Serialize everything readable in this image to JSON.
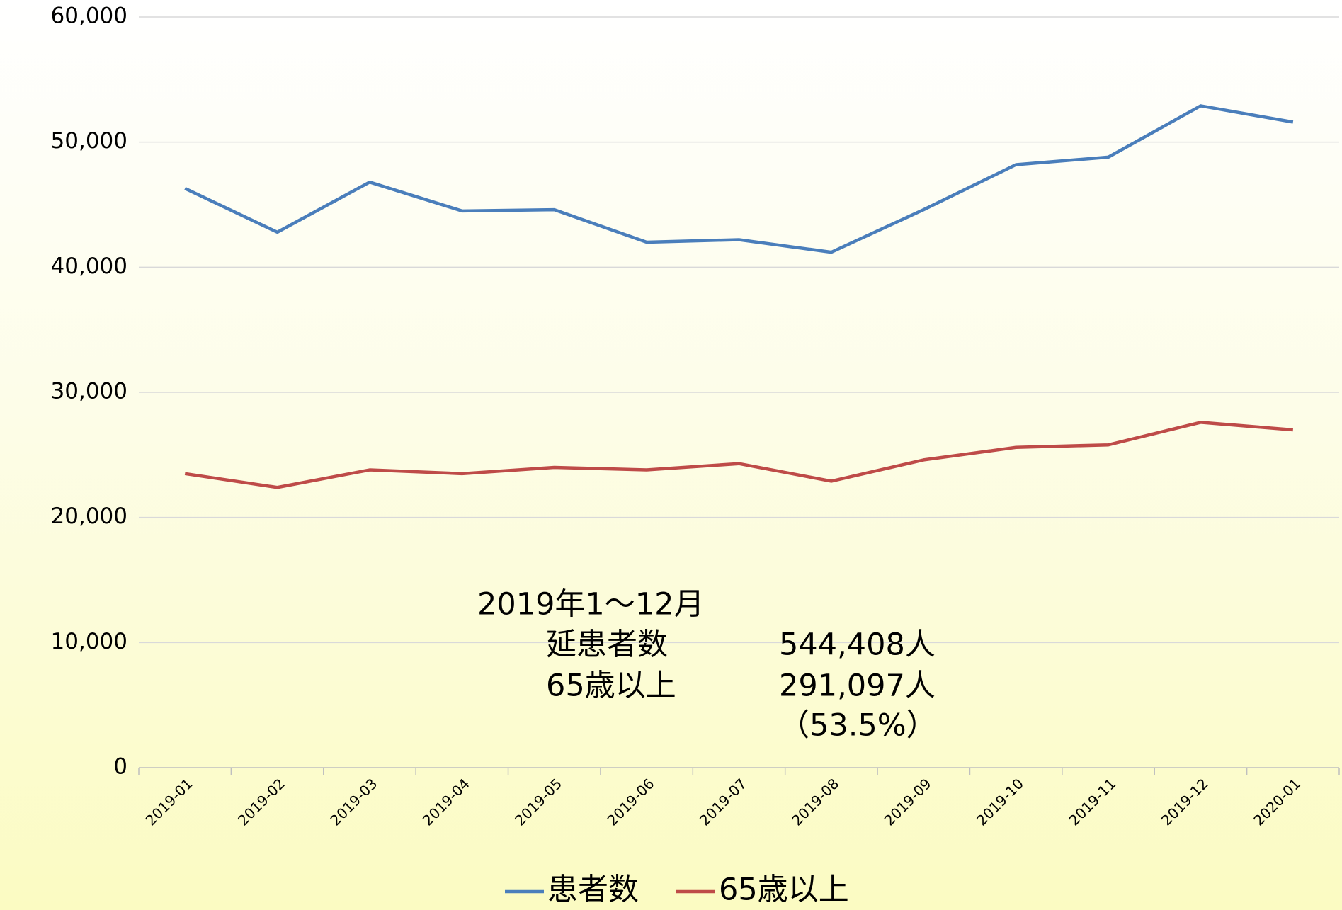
{
  "chart_data": {
    "type": "line",
    "categories": [
      "2019-01",
      "2019-02",
      "2019-03",
      "2019-04",
      "2019-05",
      "2019-06",
      "2019-07",
      "2019-08",
      "2019-09",
      "2019-10",
      "2019-11",
      "2019-12",
      "2020-01"
    ],
    "series": [
      {
        "name": "患者数",
        "color": "#4a7ebb",
        "values": [
          46300,
          42800,
          46800,
          44500,
          44600,
          42000,
          42200,
          41200,
          44600,
          48200,
          48800,
          52900,
          51600
        ]
      },
      {
        "name": "65歳以上",
        "color": "#be4b48",
        "values": [
          23500,
          22400,
          23800,
          23500,
          24000,
          23800,
          24300,
          22900,
          24600,
          25600,
          25800,
          27600,
          27000
        ]
      }
    ],
    "ylim": [
      0,
      60000
    ],
    "yticks": [
      0,
      {
        "value": 10000,
        "label": "10,000"
      },
      {
        "value": 20000,
        "label": "20,000"
      },
      {
        "value": 30000,
        "label": "30,000"
      },
      {
        "value": 40000,
        "label": "40,000"
      },
      {
        "value": 50000,
        "label": "50,000"
      },
      {
        "value": 60000,
        "label": "60,000"
      }
    ],
    "grid": true,
    "legend": "bottom",
    "annotations": [
      "2019年1～12月",
      "延患者数",
      "544,408人",
      "65歳以上",
      "291,097人",
      "（53.5%）"
    ]
  }
}
